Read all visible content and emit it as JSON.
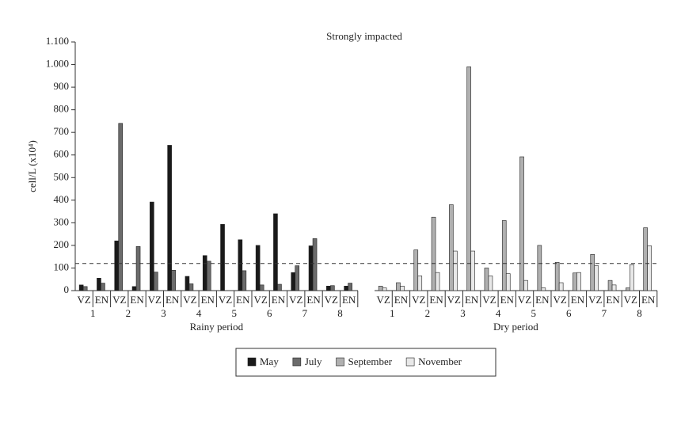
{
  "chart_data": {
    "type": "bar",
    "title": "Strongly impacted",
    "y_label": "cell/L (x10⁴)",
    "ylim": [
      0,
      1100
    ],
    "yticks": [
      0,
      100,
      200,
      300,
      400,
      500,
      600,
      700,
      800,
      900,
      {
        "value": 1000,
        "label": "1.000"
      },
      {
        "value": 1100,
        "label": "1.100"
      }
    ],
    "threshold": 120,
    "periods": [
      {
        "name": "Rainy period",
        "stations": [
          "1",
          "2",
          "3",
          "4",
          "5",
          "6",
          "7",
          "8"
        ],
        "categories": [
          "VZ",
          "EN",
          "VZ",
          "EN",
          "VZ",
          "EN",
          "VZ",
          "EN",
          "VZ",
          "EN",
          "VZ",
          "EN",
          "VZ",
          "EN",
          "VZ",
          "EN"
        ],
        "series": [
          {
            "name": "May",
            "color": "#1a1a1a",
            "values": [
              25,
              55,
              220,
              18,
              392,
              643,
              63,
              155,
              293,
              225,
              200,
              340,
              80,
              198,
              20,
              20
            ]
          },
          {
            "name": "July",
            "color": "#6b6b6b",
            "values": [
              18,
              33,
              740,
              195,
              82,
              90,
              30,
              130,
              null,
              88,
              25,
              28,
              110,
              230,
              22,
              33
            ]
          }
        ]
      },
      {
        "name": "Dry period",
        "stations": [
          "1",
          "2",
          "3",
          "4",
          "5",
          "6",
          "7",
          "8"
        ],
        "categories": [
          "VZ",
          "EN",
          "VZ",
          "EN",
          "VZ",
          "EN",
          "VZ",
          "EN",
          "VZ",
          "EN",
          "VZ",
          "EN",
          "VZ",
          "EN",
          "VZ",
          "EN"
        ],
        "series": [
          {
            "name": "September",
            "color": "#b0b0b0",
            "values": [
              20,
              35,
              180,
              325,
              380,
              990,
              100,
              310,
              592,
              200,
              125,
              78,
              160,
              45,
              12,
              278
            ]
          },
          {
            "name": "November",
            "color": "#e8e8e8",
            "values": [
              12,
              20,
              65,
              80,
              175,
              175,
              65,
              75,
              45,
              12,
              35,
              80,
              110,
              25,
              115,
              198
            ]
          }
        ]
      }
    ]
  }
}
